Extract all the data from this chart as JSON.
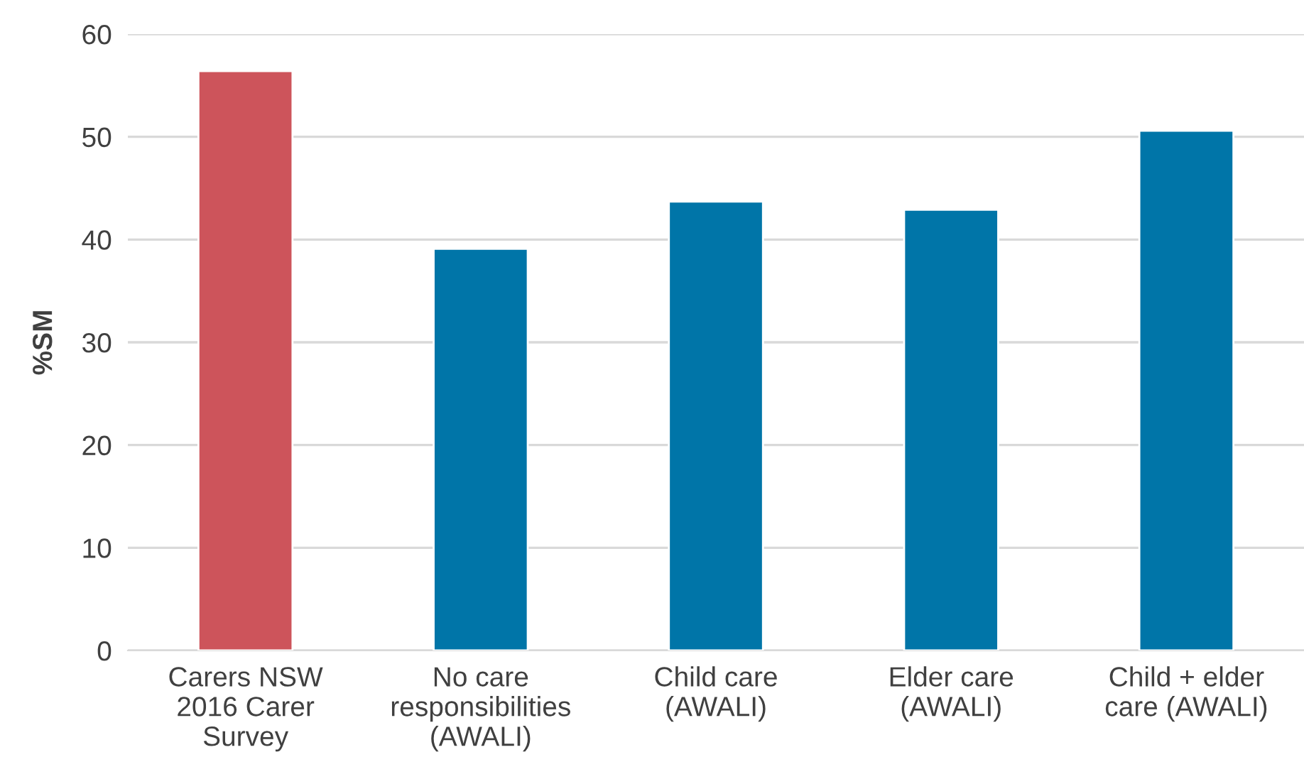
{
  "chart_data": {
    "type": "bar",
    "ylabel": "%SM",
    "categories": [
      "Carers NSW\n2016 Carer\nSurvey",
      "No care\nresponsibilities\n(AWALI)",
      "Child care\n(AWALI)",
      "Elder care\n(AWALI)",
      "Child + elder\ncare (AWALI)"
    ],
    "values": [
      56.4,
      39.1,
      43.7,
      42.9,
      50.6
    ],
    "colors": [
      "#cd545b",
      "#0075a8",
      "#0075a8",
      "#0075a8",
      "#0075a8"
    ],
    "ylim": [
      0,
      60
    ],
    "yticks": [
      0,
      10,
      20,
      30,
      40,
      50,
      60
    ],
    "grid": "y",
    "legend": false
  }
}
